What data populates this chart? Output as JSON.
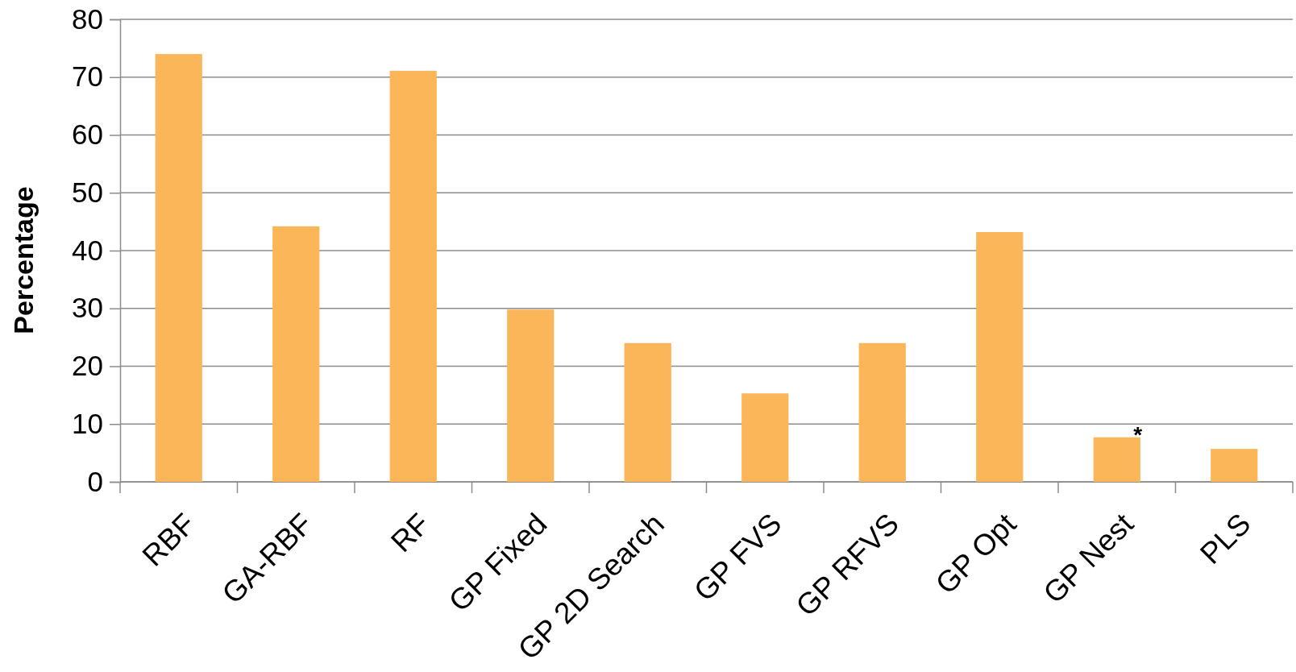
{
  "chart_data": {
    "type": "bar",
    "ylabel": "Percentage",
    "categories": [
      "RBF",
      "GA-RBF",
      "RF",
      "GP Fixed",
      "GP 2D Search",
      "GP FVS",
      "GP RFVS",
      "GP Opt",
      "GP Nest",
      "PLS"
    ],
    "values": [
      74.0,
      44.2,
      71.1,
      29.8,
      24.0,
      15.3,
      24.0,
      43.2,
      7.7,
      5.7
    ],
    "color": "#fab658",
    "ylim": [
      0,
      80
    ],
    "yticks": [
      0,
      10,
      20,
      30,
      40,
      50,
      60,
      70,
      80
    ],
    "grid": "y",
    "annotations": [
      {
        "text": "*",
        "x": "GP Nest",
        "y": 7.7
      }
    ]
  }
}
